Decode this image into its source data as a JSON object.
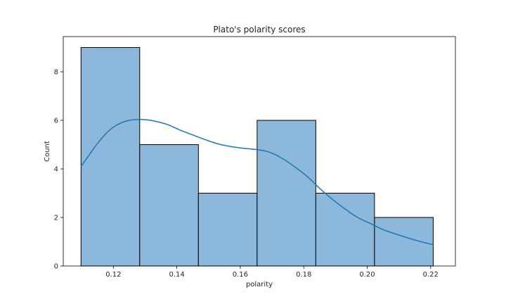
{
  "chart_data": {
    "type": "histogram",
    "title": "Plato's polarity scores",
    "xlabel": "polarity",
    "ylabel": "Count",
    "xlim": [
      0.1042,
      0.2278
    ],
    "ylim": [
      0,
      9.45
    ],
    "xticks": [
      "0.12",
      "0.14",
      "0.16",
      "0.18",
      "0.20",
      "0.22"
    ],
    "xtick_values": [
      0.12,
      0.14,
      0.16,
      0.18,
      0.2,
      0.22
    ],
    "yticks": [
      "0",
      "2",
      "4",
      "6",
      "8"
    ],
    "ytick_values": [
      0,
      2,
      4,
      6,
      8
    ],
    "bin_edges": [
      0.1098,
      0.1283,
      0.1468,
      0.1653,
      0.1838,
      0.2023,
      0.2208
    ],
    "counts": [
      9,
      5,
      3,
      6,
      3,
      2
    ],
    "kde": {
      "x": [
        0.1098,
        0.1125,
        0.115,
        0.118,
        0.121,
        0.124,
        0.127,
        0.13,
        0.133,
        0.137,
        0.141,
        0.145,
        0.149,
        0.153,
        0.157,
        0.161,
        0.165,
        0.169,
        0.173,
        0.177,
        0.181,
        0.185,
        0.189,
        0.193,
        0.197,
        0.201,
        0.205,
        0.209,
        0.213,
        0.217,
        0.2208
      ],
      "y": [
        4.1,
        4.6,
        5.05,
        5.5,
        5.8,
        5.97,
        6.03,
        6.03,
        5.97,
        5.83,
        5.6,
        5.4,
        5.2,
        5.03,
        4.92,
        4.85,
        4.8,
        4.7,
        4.45,
        4.1,
        3.7,
        3.2,
        2.75,
        2.35,
        2.0,
        1.75,
        1.5,
        1.32,
        1.15,
        1.0,
        0.88
      ]
    },
    "grid": false,
    "colors": {
      "bar_fill": "#8cb8db",
      "bar_edge": "#000000",
      "kde_line": "#1f77b4",
      "axes": "#000000"
    }
  }
}
